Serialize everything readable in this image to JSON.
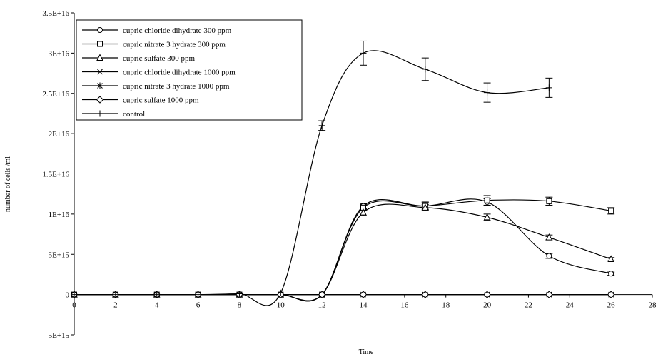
{
  "chart_data": {
    "type": "line",
    "title": "",
    "xlabel": "Time",
    "ylabel": "number of cells /ml",
    "xlim": [
      0,
      28
    ],
    "ylim": [
      -5000000000000000.0,
      3.5e+16
    ],
    "x_ticks": [
      "0",
      "2",
      "4",
      "6",
      "8",
      "10",
      "12",
      "14",
      "16",
      "18",
      "20",
      "22",
      "24",
      "26",
      "28"
    ],
    "y_ticks": [
      "3.5E+16",
      "3E+16",
      "2.5E+16",
      "2E+16",
      "1.5E+16",
      "1E+16",
      "5E+15",
      "0",
      "-5E+15"
    ],
    "grid": false,
    "legend_position": "top-left",
    "series": [
      {
        "name": "cupric chloride dihydrate 300 ppm",
        "marker": "circle",
        "x": [
          0,
          2,
          4,
          6,
          8,
          10,
          12,
          14,
          17,
          20,
          23,
          26
        ],
        "y": [
          0,
          0,
          0,
          0,
          0,
          0,
          0,
          1.1e+16,
          1.1e+16,
          1.15e+16,
          4800000000000000.0,
          2600000000000000.0
        ],
        "err": [
          0,
          0,
          0,
          0,
          0,
          0,
          0,
          300000000000000.0,
          400000000000000.0,
          400000000000000.0,
          300000000000000.0,
          200000000000000.0
        ]
      },
      {
        "name": "cupric nitrate 3 hydrate 300 ppm",
        "marker": "square",
        "x": [
          0,
          2,
          4,
          6,
          8,
          10,
          12,
          14,
          17,
          20,
          23,
          26
        ],
        "y": [
          0,
          0,
          0,
          0,
          0,
          0,
          0,
          1.08e+16,
          1.1e+16,
          1.17e+16,
          1.16e+16,
          1.04e+16
        ],
        "err": [
          0,
          0,
          0,
          0,
          0,
          0,
          0,
          400000000000000.0,
          500000000000000.0,
          600000000000000.0,
          500000000000000.0,
          400000000000000.0
        ]
      },
      {
        "name": "cupric sulfate 300 ppm",
        "marker": "triangle",
        "x": [
          0,
          2,
          4,
          6,
          8,
          10,
          12,
          14,
          17,
          20,
          23,
          26
        ],
        "y": [
          0,
          0,
          0,
          0,
          0,
          0,
          0,
          1.02e+16,
          1.08e+16,
          9600000000000000.0,
          7100000000000000.0,
          4400000000000000.0
        ],
        "err": [
          0,
          0,
          0,
          0,
          0,
          0,
          0,
          400000000000000.0,
          400000000000000.0,
          400000000000000.0,
          300000000000000.0,
          200000000000000.0
        ]
      },
      {
        "name": "cupric chloride dihydrate 1000 ppm",
        "marker": "x",
        "x": [
          0,
          2,
          4,
          6,
          8,
          10,
          12,
          14,
          17,
          20,
          23,
          26
        ],
        "y": [
          0,
          0,
          0,
          0,
          0,
          0,
          0,
          0,
          0,
          0,
          0,
          0
        ],
        "err": []
      },
      {
        "name": "cupric nitrate 3 hydrate 1000 ppm",
        "marker": "asterisk",
        "x": [
          0,
          2,
          4,
          6,
          8,
          10,
          12,
          14,
          17,
          20,
          23,
          26
        ],
        "y": [
          0,
          0,
          0,
          0,
          0,
          0,
          0,
          0,
          0,
          0,
          0,
          0
        ],
        "err": []
      },
      {
        "name": "cupric sulfate 1000 ppm",
        "marker": "diamond",
        "x": [
          0,
          2,
          4,
          6,
          8,
          10,
          12,
          14,
          17,
          20,
          23,
          26
        ],
        "y": [
          0,
          0,
          0,
          0,
          0,
          0,
          0,
          0,
          0,
          0,
          0,
          0
        ],
        "err": []
      },
      {
        "name": "control",
        "marker": "plus",
        "x": [
          0,
          2,
          4,
          6,
          8,
          10,
          12,
          14,
          17,
          20,
          23
        ],
        "y": [
          0,
          0,
          0,
          0,
          100000000000000.0,
          200000000000000.0,
          2.1e+16,
          3e+16,
          2.8e+16,
          2.51e+16,
          2.57e+16
        ],
        "err": [
          0,
          0,
          0,
          0,
          0,
          0,
          600000000000000.0,
          1500000000000000.0,
          1400000000000000.0,
          1200000000000000.0,
          1200000000000000.0
        ]
      }
    ]
  }
}
